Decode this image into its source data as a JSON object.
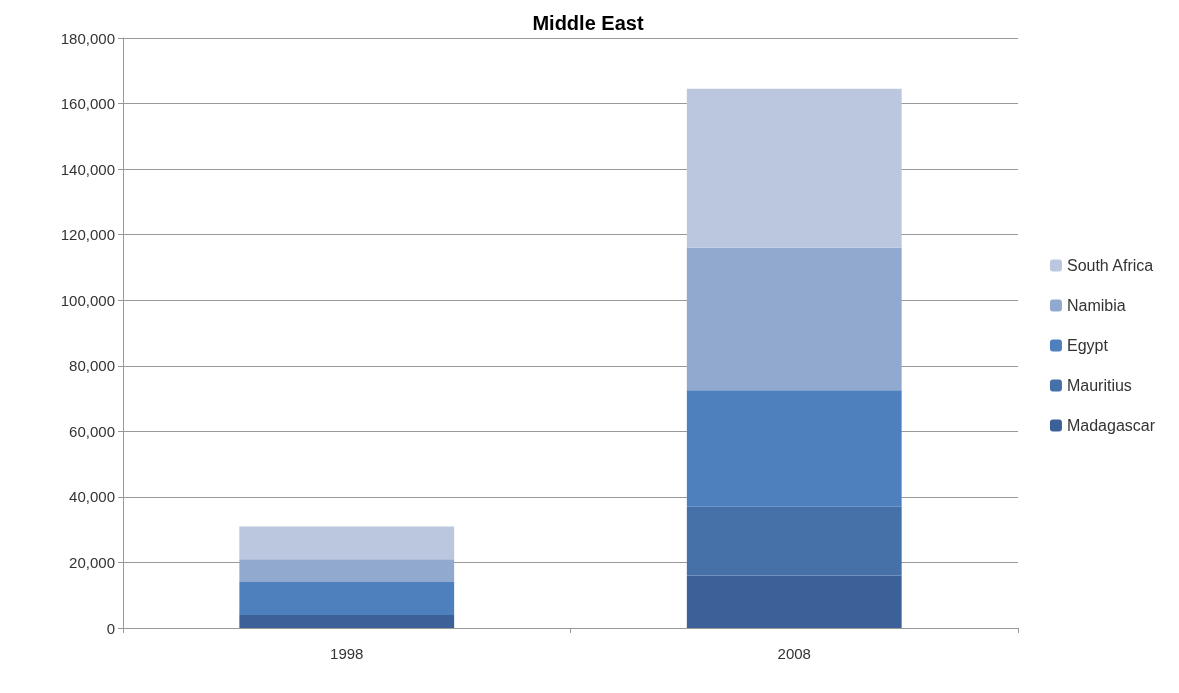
{
  "chart_data": {
    "type": "bar",
    "title": "Middle East",
    "categories": [
      "1998",
      "2008"
    ],
    "stacked": true,
    "series": [
      {
        "name": "Madagascar",
        "color": "#3c6198",
        "values": [
          4000,
          16000
        ]
      },
      {
        "name": "Mauritius",
        "color": "#4571a8",
        "values": [
          0,
          21000
        ]
      },
      {
        "name": "Egypt",
        "color": "#4d80bd",
        "values": [
          10000,
          35500
        ]
      },
      {
        "name": "Namibia",
        "color": "#92a9cf",
        "values": [
          7000,
          43500
        ]
      },
      {
        "name": "South Africa",
        "color": "#bbc6df",
        "values": [
          10000,
          48500
        ]
      }
    ],
    "ylim": [
      0,
      180000
    ],
    "yticks": [
      0,
      {
        "value": 20000,
        "label": "20,000"
      },
      {
        "value": 40000,
        "label": "40,000"
      },
      {
        "value": 60000,
        "label": "60,000"
      },
      {
        "value": 80000,
        "label": "80,000"
      },
      {
        "value": 100000,
        "label": "100,000"
      },
      {
        "value": 120000,
        "label": "120,000"
      },
      {
        "value": 140000,
        "label": "140,000"
      },
      {
        "value": 160000,
        "label": "160,000"
      },
      {
        "value": 180000,
        "label": "180,000"
      }
    ],
    "grid": "y",
    "legend": "right"
  }
}
